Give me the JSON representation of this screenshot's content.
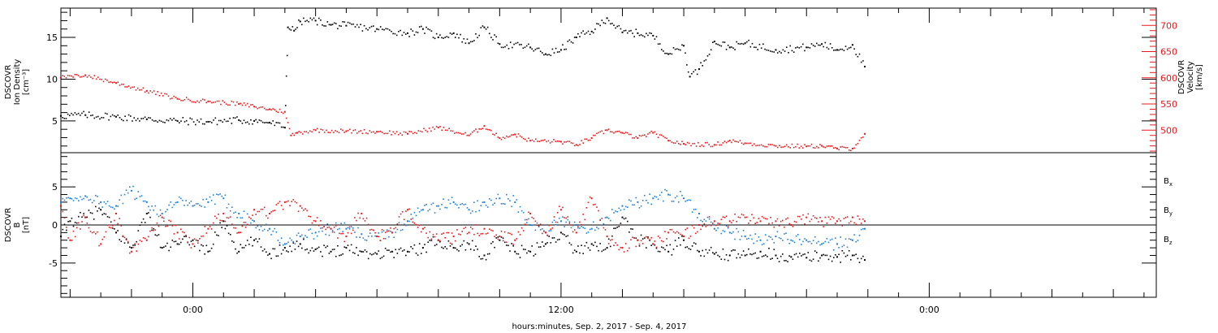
{
  "chart_data": {
    "xlabel": "hours:minutes, Sep.  2, 2017 - Sep.  4, 2017",
    "x_ticks": [
      "0:00",
      "12:00",
      "0:00"
    ],
    "x_tick_hours": [
      0,
      12,
      24
    ],
    "xlim_hours": [
      -4.3,
      31.4
    ],
    "panels": [
      {
        "type": "scatter",
        "left_axis": {
          "label_lines": [
            "DSCOVR",
            "Ion Density",
            "[cm⁻³]"
          ],
          "ticks": [
            "5",
            "10",
            "15"
          ],
          "tick_values": [
            5,
            10,
            15
          ],
          "ylim": [
            1.2,
            18.5
          ],
          "color": "#000000"
        },
        "right_axis": {
          "label_lines": [
            "DSCOVR",
            "Velocity",
            "[km/s]"
          ],
          "ticks": [
            "500",
            "550",
            "600",
            "650",
            "700"
          ],
          "tick_values": [
            500,
            550,
            600,
            650,
            700
          ],
          "ylim": [
            457,
            733
          ],
          "color": "#e8191c"
        },
        "series": [
          {
            "axis": "left",
            "color": "#000000",
            "x": [
              -4.3,
              -3.5,
              -2.5,
              -1.5,
              -0.5,
              0.5,
              1.5,
              2.0,
              2.5,
              3.0,
              3.1,
              3.3,
              3.5,
              4.0,
              4.5,
              5.0,
              6.0,
              7.0,
              7.5,
              8.0,
              8.5,
              9.0,
              9.5,
              10.0,
              11.0,
              11.5,
              12.0,
              12.5,
              13.0,
              13.5,
              14.0,
              14.5,
              15.0,
              15.5,
              16.0,
              16.2,
              16.5,
              17.0,
              17.5,
              18.0,
              19.0,
              20.0,
              20.5,
              21.0,
              21.5,
              21.9
            ],
            "y": [
              5.6,
              5.7,
              5.5,
              5.2,
              5.0,
              4.9,
              5.1,
              5.0,
              4.8,
              4.2,
              16.2,
              15.8,
              16.9,
              17.0,
              16.5,
              16.4,
              16.0,
              15.5,
              16.0,
              15.0,
              15.5,
              14.3,
              16.2,
              14.2,
              13.8,
              13.0,
              13.5,
              15.0,
              15.7,
              17.3,
              15.6,
              15.5,
              15.2,
              13.0,
              14.0,
              10.3,
              11.2,
              14.5,
              13.8,
              14.3,
              13.5,
              13.8,
              14.2,
              13.5,
              14.1,
              11.5
            ]
          },
          {
            "axis": "right",
            "color": "#e8191c",
            "x": [
              -4.3,
              -3.5,
              -2.5,
              -1.5,
              -0.5,
              0.5,
              1.5,
              2.0,
              2.5,
              3.0,
              3.2,
              3.4,
              4.0,
              5.0,
              6.0,
              7.0,
              8.0,
              9.0,
              9.5,
              10.0,
              10.5,
              11.0,
              12.0,
              12.5,
              13.0,
              13.5,
              14.0,
              14.5,
              15.0,
              15.5,
              16.0,
              17.0,
              17.5,
              18.0,
              19.0,
              20.0,
              20.5,
              21.0,
              21.5,
              21.9
            ],
            "y": [
              600,
              605,
              590,
              575,
              560,
              555,
              550,
              545,
              540,
              535,
              490,
              495,
              500,
              498,
              497,
              493,
              505,
              490,
              508,
              485,
              492,
              480,
              478,
              472,
              485,
              500,
              495,
              485,
              495,
              480,
              474,
              472,
              480,
              475,
              470,
              469,
              470,
              465,
              465,
              493
            ]
          }
        ]
      },
      {
        "type": "scatter",
        "left_axis": {
          "label_lines": [
            "DSCOVR",
            "B",
            "[nT]"
          ],
          "ticks": [
            "-5",
            "0",
            "5"
          ],
          "tick_values": [
            -5,
            0,
            5
          ],
          "ylim": [
            -9.5,
            9.5
          ],
          "color": "#000000"
        },
        "legend": [
          {
            "label": "B",
            "sub": "x",
            "color": "#000000"
          },
          {
            "label": "B",
            "sub": "y",
            "color": "#1f7fd6"
          },
          {
            "label": "B",
            "sub": "z",
            "color": "#e8191c"
          }
        ],
        "series": [
          {
            "name": "Bx",
            "color": "#000000",
            "x": [
              -4.3,
              -4.0,
              -3.5,
              -3.0,
              -2.5,
              -2.0,
              -1.5,
              -1.0,
              -0.5,
              0.0,
              0.5,
              1.0,
              1.5,
              2.0,
              2.5,
              3.0,
              3.5,
              4.0,
              4.5,
              5.0,
              5.5,
              6.0,
              6.5,
              7.0,
              7.5,
              8.0,
              8.5,
              9.0,
              9.5,
              10.0,
              10.5,
              11.0,
              11.5,
              12.0,
              12.5,
              13.0,
              13.5,
              14.0,
              14.5,
              15.0,
              15.5,
              16.0,
              16.5,
              17.0,
              17.5,
              18.0,
              18.5,
              19.0,
              19.5,
              20.0,
              20.5,
              21.0,
              21.5,
              21.9
            ],
            "y": [
              -1.5,
              0.5,
              1.0,
              2.0,
              -1.0,
              -3.0,
              1.5,
              -3.0,
              -2.5,
              -2.0,
              -3.5,
              0.5,
              -3.5,
              -2.0,
              -3.8,
              -3.0,
              -2.5,
              -3.2,
              -3.5,
              -3.0,
              -3.5,
              -3.8,
              -3.5,
              -3.5,
              -3.0,
              -2.0,
              -3.0,
              -2.5,
              -4.0,
              -2.0,
              -3.5,
              -3.5,
              -2.5,
              -1.0,
              -3.5,
              -2.5,
              -3.0,
              1.0,
              -2.0,
              -2.5,
              -3.5,
              -2.0,
              -3.5,
              -3.8,
              -4.0,
              -4.0,
              -3.5,
              -4.0,
              -4.2,
              -4.3,
              -4.0,
              -4.2,
              -4.0,
              -4.6
            ]
          },
          {
            "name": "By",
            "color": "#1f7fd6",
            "x": [
              -4.3,
              -4.0,
              -3.5,
              -3.0,
              -2.5,
              -2.0,
              -1.5,
              -1.0,
              -0.5,
              0.0,
              0.5,
              1.0,
              1.5,
              2.0,
              2.5,
              3.0,
              3.5,
              4.0,
              4.5,
              5.0,
              5.5,
              6.0,
              6.5,
              7.0,
              7.5,
              8.0,
              8.5,
              9.0,
              9.5,
              10.0,
              10.5,
              11.0,
              11.5,
              12.0,
              12.5,
              13.0,
              13.5,
              14.0,
              14.5,
              15.0,
              15.5,
              16.0,
              16.5,
              17.0,
              17.5,
              18.0,
              18.5,
              19.0,
              19.5,
              20.0,
              20.5,
              21.0,
              21.5,
              21.9
            ],
            "y": [
              3.0,
              3.5,
              3.8,
              3.0,
              2.5,
              4.5,
              3.0,
              1.5,
              3.0,
              2.5,
              3.0,
              3.5,
              1.5,
              0.5,
              -0.5,
              -2.5,
              -1.5,
              -1.0,
              -0.5,
              -0.5,
              -1.2,
              -1.5,
              -1.0,
              0.5,
              2.0,
              2.5,
              3.0,
              2.0,
              3.0,
              3.5,
              3.0,
              0.0,
              -1.0,
              0.5,
              0.0,
              -0.5,
              1.0,
              2.5,
              3.0,
              3.5,
              4.0,
              3.5,
              1.5,
              -0.5,
              -1.0,
              -1.5,
              -2.0,
              -1.5,
              -2.0,
              -2.0,
              -2.5,
              -2.5,
              -2.0,
              -0.5
            ]
          },
          {
            "name": "Bz",
            "color": "#e8191c",
            "x": [
              -4.3,
              -4.0,
              -3.5,
              -3.0,
              -2.5,
              -2.0,
              -1.5,
              -1.0,
              -0.5,
              0.0,
              0.5,
              1.0,
              1.5,
              2.0,
              2.5,
              3.0,
              3.5,
              4.0,
              4.5,
              5.0,
              5.5,
              6.0,
              6.5,
              7.0,
              7.5,
              8.0,
              8.5,
              9.0,
              9.5,
              10.0,
              10.5,
              11.0,
              11.5,
              12.0,
              12.5,
              13.0,
              13.5,
              14.0,
              14.5,
              15.0,
              15.5,
              16.0,
              16.5,
              17.0,
              17.5,
              18.0,
              18.5,
              19.0,
              19.5,
              20.0,
              20.5,
              21.0,
              21.5,
              21.9
            ],
            "y": [
              2.5,
              -2.0,
              1.0,
              -2.5,
              1.5,
              -3.5,
              -2.0,
              1.0,
              -1.0,
              -2.5,
              -0.5,
              1.5,
              -1.0,
              2.0,
              1.5,
              3.0,
              2.5,
              0.5,
              -0.5,
              -1.5,
              1.5,
              -1.5,
              -1.0,
              2.0,
              -0.5,
              -2.0,
              -1.5,
              -1.0,
              -0.5,
              -1.5,
              -2.0,
              1.5,
              -1.0,
              2.0,
              -1.0,
              3.5,
              -1.5,
              -3.0,
              -2.0,
              -2.5,
              -1.0,
              -1.5,
              0.0,
              0.5,
              0.5,
              1.0,
              0.5,
              0.5,
              0.0,
              1.0,
              0.5,
              0.5,
              1.0,
              0.5
            ]
          }
        ]
      }
    ]
  }
}
